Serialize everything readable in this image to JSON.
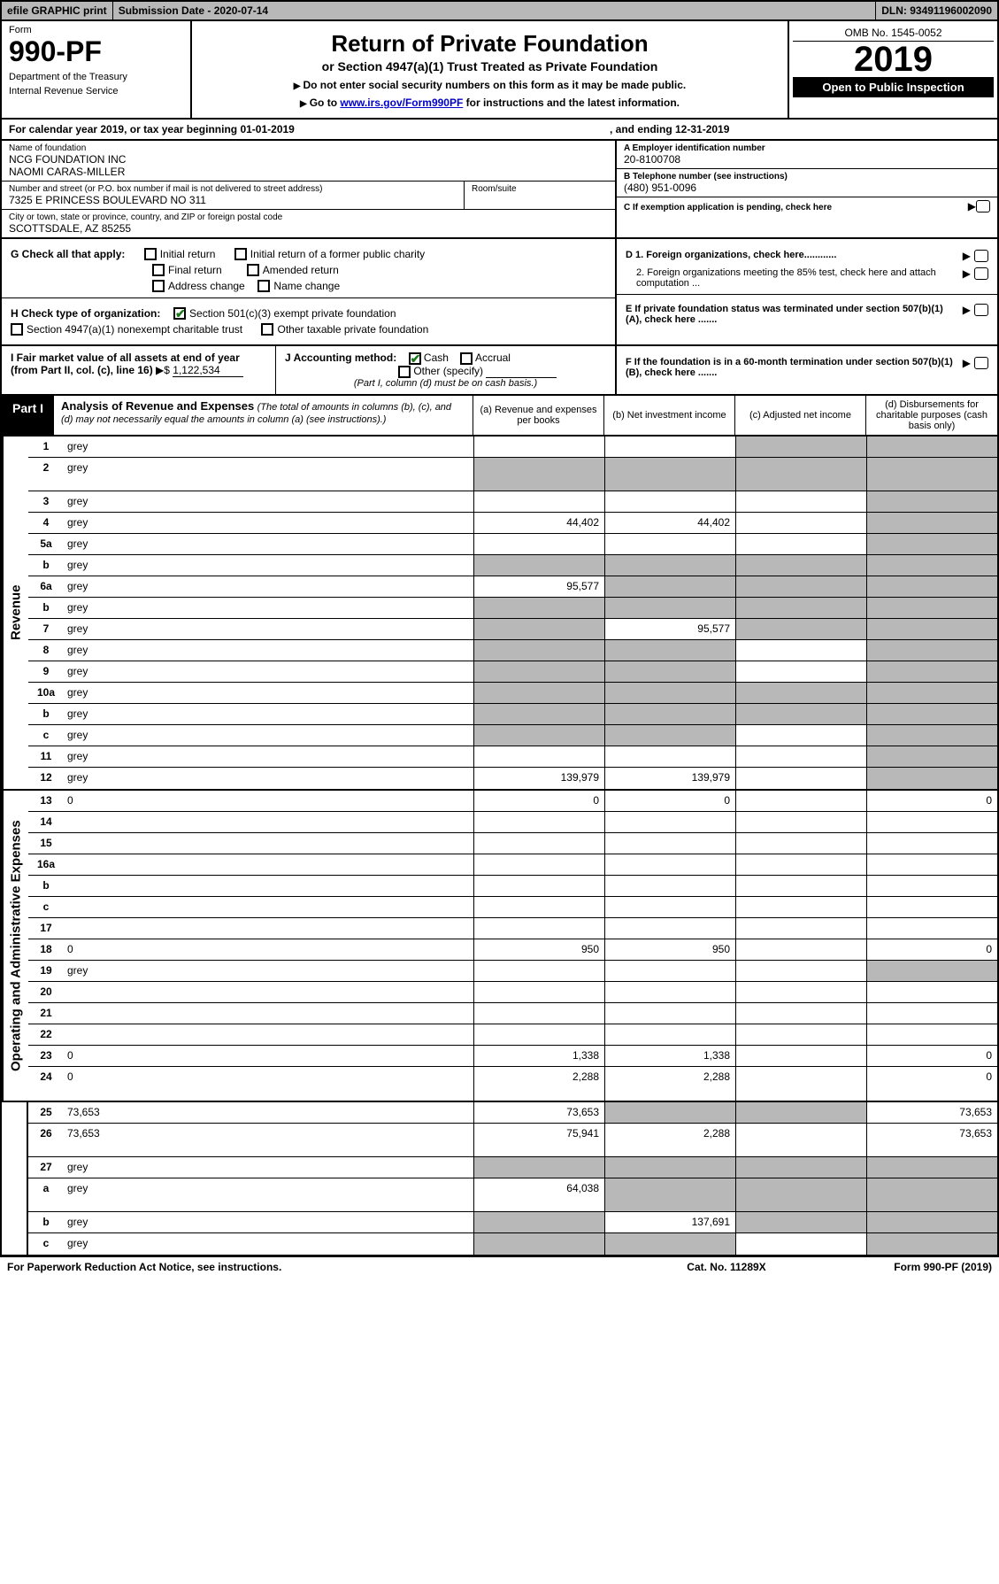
{
  "topbar": {
    "efile": "efile GRAPHIC print",
    "subdate_label": "Submission Date - ",
    "subdate": "2020-07-14",
    "dln_label": "DLN: ",
    "dln": "93491196002090"
  },
  "header": {
    "form_label": "Form",
    "form_number": "990-PF",
    "dept1": "Department of the Treasury",
    "dept2": "Internal Revenue Service",
    "title": "Return of Private Foundation",
    "subtitle": "or Section 4947(a)(1) Trust Treated as Private Foundation",
    "note1": "Do not enter social security numbers on this form as it may be made public.",
    "note2_pre": "Go to ",
    "note2_link": "www.irs.gov/Form990PF",
    "note2_post": " for instructions and the latest information.",
    "omb": "OMB No. 1545-0052",
    "year": "2019",
    "open_public": "Open to Public Inspection"
  },
  "calendar": {
    "text1": "For calendar year 2019, or tax year beginning ",
    "begin_date": "01-01-2019",
    "text2": ", and ending ",
    "end_date": "12-31-2019"
  },
  "entity": {
    "name_label": "Name of foundation",
    "name1": "NCG FOUNDATION INC",
    "name2": "NAOMI CARAS-MILLER",
    "addr_label": "Number and street (or P.O. box number if mail is not delivered to street address)",
    "addr": "7325 E PRINCESS BOULEVARD NO 311",
    "room_label": "Room/suite",
    "city_label": "City or town, state or province, country, and ZIP or foreign postal code",
    "city": "SCOTTSDALE, AZ  85255",
    "ein_label": "A Employer identification number",
    "ein": "20-8100708",
    "phone_label": "B Telephone number (see instructions)",
    "phone": "(480) 951-0096",
    "c_text": "C If exemption application is pending, check here"
  },
  "boxG": {
    "label": "G Check all that apply:",
    "opt1": "Initial return",
    "opt2": "Initial return of a former public charity",
    "opt3": "Final return",
    "opt4": "Amended return",
    "opt5": "Address change",
    "opt6": "Name change"
  },
  "boxH": {
    "label": "H Check type of organization:",
    "opt1": "Section 501(c)(3) exempt private foundation",
    "opt1_checked": true,
    "opt2": "Section 4947(a)(1) nonexempt charitable trust",
    "opt3": "Other taxable private foundation"
  },
  "boxD": {
    "d1": "D 1. Foreign organizations, check here............",
    "d2": "2. Foreign organizations meeting the 85% test, check here and attach computation ...",
    "e": "E  If private foundation status was terminated under section 507(b)(1)(A), check here .......",
    "f": "F  If the foundation is in a 60-month termination under section 507(b)(1)(B), check here ......."
  },
  "boxI": {
    "label": "I Fair market value of all assets at end of year (from Part II, col. (c), line 16) ",
    "value": "1,122,534"
  },
  "boxJ": {
    "label": "J Accounting method:",
    "cash": "Cash",
    "cash_checked": true,
    "accrual": "Accrual",
    "other": "Other (specify)",
    "note": "(Part I, column (d) must be on cash basis.)"
  },
  "part1": {
    "label": "Part I",
    "title": "Analysis of Revenue and Expenses",
    "desc": "(The total of amounts in columns (b), (c), and (d) may not necessarily equal the amounts in column (a) (see instructions).)",
    "col_a": "(a)   Revenue and expenses per books",
    "col_b": "(b)   Net investment income",
    "col_c": "(c)   Adjusted net income",
    "col_d": "(d)   Disbursements for charitable purposes (cash basis only)"
  },
  "side_labels": {
    "revenue": "Revenue",
    "expenses": "Operating and Administrative Expenses"
  },
  "rows": [
    {
      "n": "1",
      "d": "grey",
      "a": "",
      "b": "",
      "c": "grey"
    },
    {
      "n": "2",
      "d": "grey",
      "a": "grey",
      "b": "grey",
      "c": "grey",
      "tall": true
    },
    {
      "n": "3",
      "d": "grey",
      "a": "",
      "b": "",
      "c": ""
    },
    {
      "n": "4",
      "d": "grey",
      "a": "44,402",
      "b": "44,402",
      "c": ""
    },
    {
      "n": "5a",
      "d": "grey",
      "a": "",
      "b": "",
      "c": ""
    },
    {
      "n": "b",
      "d": "grey",
      "a": "grey",
      "b": "grey",
      "c": "grey"
    },
    {
      "n": "6a",
      "d": "grey",
      "a": "95,577",
      "b": "grey",
      "c": "grey"
    },
    {
      "n": "b",
      "d": "grey",
      "a": "grey",
      "b": "grey",
      "c": "grey"
    },
    {
      "n": "7",
      "d": "grey",
      "a": "grey",
      "b": "95,577",
      "c": "grey"
    },
    {
      "n": "8",
      "d": "grey",
      "a": "grey",
      "b": "grey",
      "c": ""
    },
    {
      "n": "9",
      "d": "grey",
      "a": "grey",
      "b": "grey",
      "c": ""
    },
    {
      "n": "10a",
      "d": "grey",
      "a": "grey",
      "b": "grey",
      "c": "grey"
    },
    {
      "n": "b",
      "d": "grey",
      "a": "grey",
      "b": "grey",
      "c": "grey"
    },
    {
      "n": "c",
      "d": "grey",
      "a": "grey",
      "b": "grey",
      "c": ""
    },
    {
      "n": "11",
      "d": "grey",
      "a": "",
      "b": "",
      "c": ""
    },
    {
      "n": "12",
      "d": "grey",
      "a": "139,979",
      "b": "139,979",
      "c": ""
    },
    {
      "n": "13",
      "d": "0",
      "a": "0",
      "b": "0",
      "c": "",
      "sec": "exp"
    },
    {
      "n": "14",
      "d": "",
      "a": "",
      "b": "",
      "c": ""
    },
    {
      "n": "15",
      "d": "",
      "a": "",
      "b": "",
      "c": ""
    },
    {
      "n": "16a",
      "d": "",
      "a": "",
      "b": "",
      "c": ""
    },
    {
      "n": "b",
      "d": "",
      "a": "",
      "b": "",
      "c": ""
    },
    {
      "n": "c",
      "d": "",
      "a": "",
      "b": "",
      "c": ""
    },
    {
      "n": "17",
      "d": "",
      "a": "",
      "b": "",
      "c": ""
    },
    {
      "n": "18",
      "d": "0",
      "a": "950",
      "b": "950",
      "c": ""
    },
    {
      "n": "19",
      "d": "grey",
      "a": "",
      "b": "",
      "c": ""
    },
    {
      "n": "20",
      "d": "",
      "a": "",
      "b": "",
      "c": ""
    },
    {
      "n": "21",
      "d": "",
      "a": "",
      "b": "",
      "c": ""
    },
    {
      "n": "22",
      "d": "",
      "a": "",
      "b": "",
      "c": ""
    },
    {
      "n": "23",
      "d": "0",
      "a": "1,338",
      "b": "1,338",
      "c": ""
    },
    {
      "n": "24",
      "d": "0",
      "a": "2,288",
      "b": "2,288",
      "c": "",
      "tall": true
    },
    {
      "n": "25",
      "d": "73,653",
      "a": "73,653",
      "b": "grey",
      "c": "grey"
    },
    {
      "n": "26",
      "d": "73,653",
      "a": "75,941",
      "b": "2,288",
      "c": "",
      "tall": true
    },
    {
      "n": "27",
      "d": "grey",
      "a": "grey",
      "b": "grey",
      "c": "grey",
      "sec": "bot"
    },
    {
      "n": "a",
      "d": "grey",
      "a": "64,038",
      "b": "grey",
      "c": "grey",
      "tall": true
    },
    {
      "n": "b",
      "d": "grey",
      "a": "grey",
      "b": "137,691",
      "c": "grey"
    },
    {
      "n": "c",
      "d": "grey",
      "a": "grey",
      "b": "grey",
      "c": ""
    }
  ],
  "footer": {
    "left": "For Paperwork Reduction Act Notice, see instructions.",
    "mid": "Cat. No. 11289X",
    "right": "Form 990-PF (2019)"
  }
}
